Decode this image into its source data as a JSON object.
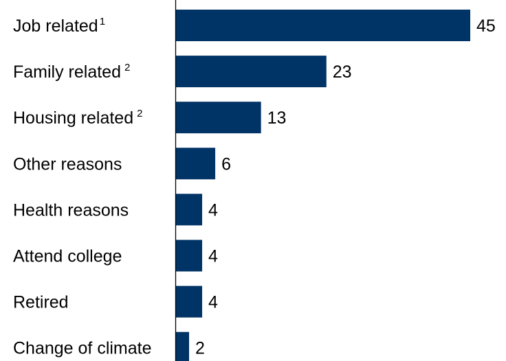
{
  "chart_data": {
    "type": "bar",
    "orientation": "horizontal",
    "categories": [
      "Job related",
      "Family related",
      "Housing related",
      "Other reasons",
      "Health reasons",
      "Attend college",
      "Retired",
      "Change of climate"
    ],
    "footnote_marks": [
      "1",
      "2",
      "2",
      "",
      "",
      "",
      "",
      ""
    ],
    "values": [
      45,
      23,
      13,
      6,
      4,
      4,
      4,
      2
    ],
    "data_labels": [
      "45",
      "23",
      "13",
      "6",
      "4",
      "4",
      "4",
      "2"
    ],
    "title": "",
    "xlabel": "",
    "ylabel": "",
    "xlim": [
      0,
      45
    ],
    "grid": false,
    "legend": "none",
    "bar_color": "#003366",
    "axis_color": "#000000"
  }
}
